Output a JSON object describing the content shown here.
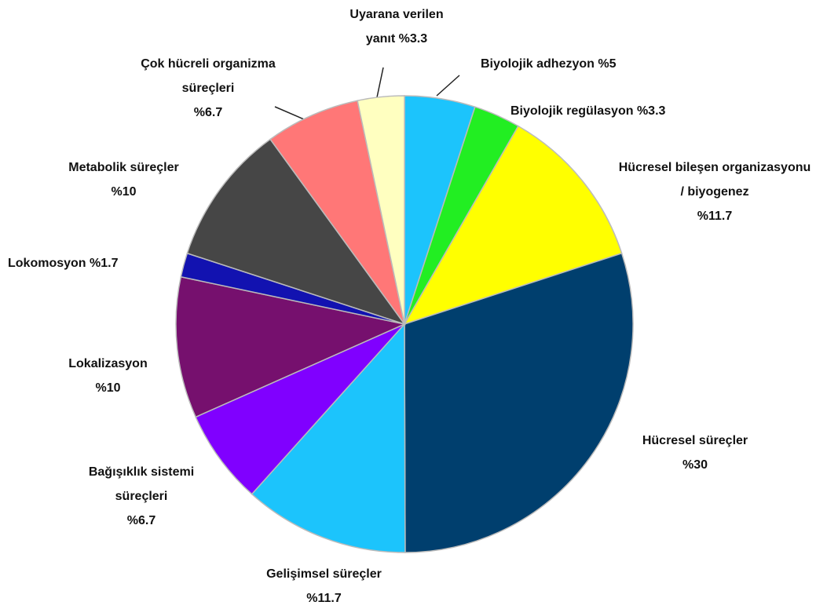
{
  "chart_data": {
    "type": "pie",
    "categories": [
      "Biyolojik  adhezyon",
      "Biyolojik regülasyon",
      "Hücresel bileşen organizasyonu / biyogenez",
      "Hücresel süreçler",
      "Gelişimsel süreçler",
      "Bağışıklık sistemi süreçleri",
      "Lokalizasyon",
      "Lokomosyon",
      "Metabolik süreçler",
      "Çok hücreli organizma süreçleri",
      "Uyarana verilen yanıt"
    ],
    "values": [
      5,
      3.3,
      11.7,
      30,
      11.7,
      6.7,
      10,
      1.7,
      10,
      6.7,
      3.3
    ],
    "value_labels": [
      "%5",
      "%3.3",
      "%11.7",
      "%30",
      "%11.7",
      "%6.7",
      "%10",
      "%1.7",
      "%10",
      "%6.7",
      "%3.3"
    ],
    "colors": [
      "#1cc4fc",
      "#22ee22",
      "#ffff00",
      "#003f6e",
      "#1cc4fc",
      "#8000ff",
      "#76106e",
      "#1212b0",
      "#464646",
      "#ff7777",
      "#ffffc0"
    ]
  }
}
